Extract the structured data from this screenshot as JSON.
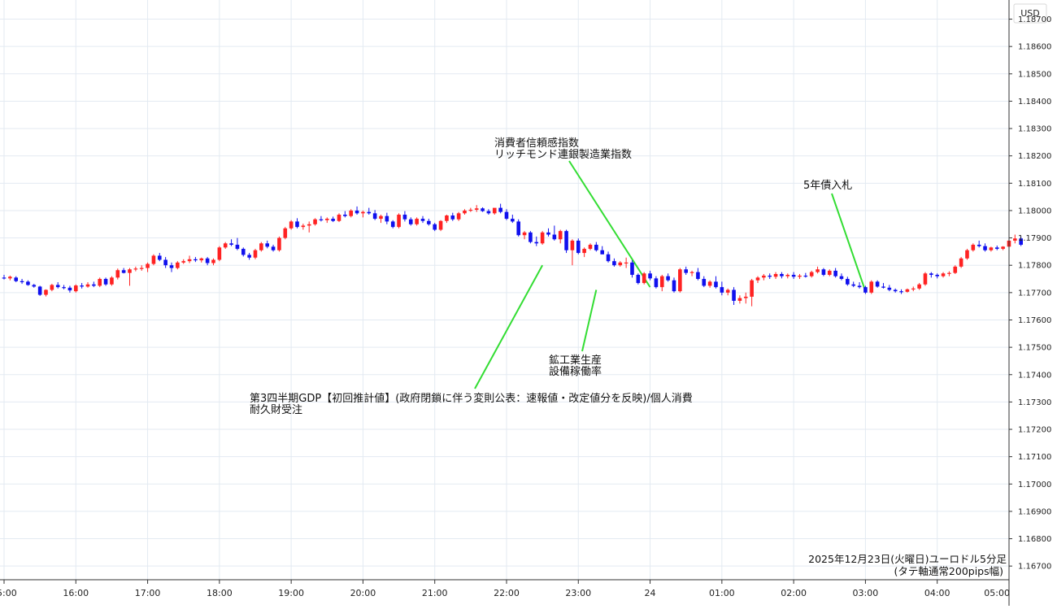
{
  "chart_data": {
    "type": "candlestick",
    "currency_label": "USD",
    "caption_lines": [
      "2025年12月23日(火曜日)ユーロドル5分足",
      "(タテ軸通常200pips幅)"
    ],
    "y_ticks": [
      "1.18700",
      "1.18600",
      "1.18500",
      "1.18400",
      "1.18300",
      "1.18200",
      "1.18100",
      "1.18000",
      "1.17900",
      "1.17800",
      "1.17700",
      "1.17600",
      "1.17500",
      "1.17400",
      "1.17300",
      "1.17200",
      "1.17100",
      "1.17000",
      "1.16900",
      "1.16800",
      "1.16700"
    ],
    "ylim": [
      1.1665,
      1.1877
    ],
    "x_ticks": [
      {
        "label": "5:00",
        "bar": 0
      },
      {
        "label": "16:00",
        "bar": 12
      },
      {
        "label": "17:00",
        "bar": 24
      },
      {
        "label": "18:00",
        "bar": 36
      },
      {
        "label": "19:00",
        "bar": 48
      },
      {
        "label": "20:00",
        "bar": 60
      },
      {
        "label": "21:00",
        "bar": 72
      },
      {
        "label": "22:00",
        "bar": 84
      },
      {
        "label": "23:00",
        "bar": 96
      },
      {
        "label": "24",
        "bar": 108
      },
      {
        "label": "01:00",
        "bar": 120
      },
      {
        "label": "02:00",
        "bar": 132
      },
      {
        "label": "03:00",
        "bar": 144
      },
      {
        "label": "04:00",
        "bar": 156
      },
      {
        "label": "05:00",
        "bar": 168
      }
    ],
    "colors": {
      "up": "#ff2222",
      "down": "#1010ee",
      "annotation_line": "#33dd33",
      "grid": "#e3eaf2",
      "axis": "#333333"
    },
    "ohlc": [
      [
        1.17755,
        1.17765,
        1.17748,
        1.17752
      ],
      [
        1.17752,
        1.17762,
        1.17745,
        1.17758
      ],
      [
        1.17755,
        1.1776,
        1.17738,
        1.17742
      ],
      [
        1.17742,
        1.1775,
        1.17732,
        1.17738
      ],
      [
        1.1774,
        1.17745,
        1.17725,
        1.17728
      ],
      [
        1.17728,
        1.17732,
        1.17718,
        1.17722
      ],
      [
        1.17722,
        1.17725,
        1.17688,
        1.17692
      ],
      [
        1.17692,
        1.17712,
        1.17686,
        1.1771
      ],
      [
        1.1771,
        1.17732,
        1.17705,
        1.17728
      ],
      [
        1.17728,
        1.17738,
        1.17715,
        1.1772
      ],
      [
        1.1772,
        1.17728,
        1.17712,
        1.17718
      ],
      [
        1.17718,
        1.17725,
        1.177,
        1.17708
      ],
      [
        1.17705,
        1.1773,
        1.177,
        1.17726
      ],
      [
        1.17726,
        1.17735,
        1.17715,
        1.17722
      ],
      [
        1.17722,
        1.17738,
        1.17718,
        1.1773
      ],
      [
        1.1773,
        1.1774,
        1.1772,
        1.17725
      ],
      [
        1.17725,
        1.17755,
        1.1772,
        1.1775
      ],
      [
        1.1775,
        1.17755,
        1.17725,
        1.1773
      ],
      [
        1.1773,
        1.1776,
        1.17725,
        1.17755
      ],
      [
        1.17755,
        1.17788,
        1.17748,
        1.17782
      ],
      [
        1.17782,
        1.1779,
        1.1777,
        1.17772
      ],
      [
        1.17772,
        1.1779,
        1.17725,
        1.17785
      ],
      [
        1.17785,
        1.17795,
        1.17778,
        1.17788
      ],
      [
        1.17788,
        1.178,
        1.1778,
        1.1779
      ],
      [
        1.1779,
        1.1781,
        1.17775,
        1.17805
      ],
      [
        1.17805,
        1.1784,
        1.178,
        1.17835
      ],
      [
        1.17835,
        1.17845,
        1.17815,
        1.1782
      ],
      [
        1.1782,
        1.1783,
        1.1779,
        1.178
      ],
      [
        1.178,
        1.1781,
        1.17775,
        1.1779
      ],
      [
        1.1779,
        1.17815,
        1.17785,
        1.1781
      ],
      [
        1.1781,
        1.17822,
        1.17805,
        1.17815
      ],
      [
        1.17815,
        1.17835,
        1.17808,
        1.17822
      ],
      [
        1.17822,
        1.1783,
        1.17812,
        1.17818
      ],
      [
        1.17818,
        1.17828,
        1.1781,
        1.17825
      ],
      [
        1.17825,
        1.1783,
        1.178,
        1.17808
      ],
      [
        1.17808,
        1.17825,
        1.178,
        1.1782
      ],
      [
        1.1782,
        1.1787,
        1.17815,
        1.17865
      ],
      [
        1.17865,
        1.17885,
        1.1786,
        1.1788
      ],
      [
        1.1788,
        1.17895,
        1.1787,
        1.17875
      ],
      [
        1.17875,
        1.179,
        1.17855,
        1.1786
      ],
      [
        1.1786,
        1.17865,
        1.17832,
        1.17838
      ],
      [
        1.17838,
        1.17845,
        1.1782,
        1.17828
      ],
      [
        1.17828,
        1.1786,
        1.17822,
        1.17855
      ],
      [
        1.17855,
        1.17885,
        1.1785,
        1.1788
      ],
      [
        1.1788,
        1.1789,
        1.17862,
        1.17868
      ],
      [
        1.17868,
        1.17875,
        1.1785,
        1.17855
      ],
      [
        1.17855,
        1.17905,
        1.1785,
        1.179
      ],
      [
        1.179,
        1.1794,
        1.17895,
        1.17935
      ],
      [
        1.17935,
        1.17965,
        1.1793,
        1.1796
      ],
      [
        1.1796,
        1.17972,
        1.17935,
        1.1794
      ],
      [
        1.1794,
        1.17952,
        1.1793,
        1.17945
      ],
      [
        1.17945,
        1.1796,
        1.1792,
        1.1795
      ],
      [
        1.1795,
        1.17972,
        1.17945,
        1.17968
      ],
      [
        1.17968,
        1.1798,
        1.1796,
        1.17965
      ],
      [
        1.17965,
        1.17975,
        1.17955,
        1.1797
      ],
      [
        1.1797,
        1.17978,
        1.17958,
        1.17962
      ],
      [
        1.17962,
        1.1799,
        1.17958,
        1.17985
      ],
      [
        1.17985,
        1.17998,
        1.17975,
        1.1798
      ],
      [
        1.1798,
        1.18005,
        1.17975,
        1.18
      ],
      [
        1.18,
        1.18015,
        1.17985,
        1.1799
      ],
      [
        1.1799,
        1.18,
        1.17975,
        1.17995
      ],
      [
        1.17995,
        1.1801,
        1.17985,
        1.1799
      ],
      [
        1.1799,
        1.18002,
        1.17965,
        1.1797
      ],
      [
        1.1797,
        1.17985,
        1.17955,
        1.1798
      ],
      [
        1.1798,
        1.17992,
        1.1795,
        1.1796
      ],
      [
        1.1796,
        1.17965,
        1.17935,
        1.1794
      ],
      [
        1.1794,
        1.1799,
        1.17935,
        1.17985
      ],
      [
        1.17985,
        1.17998,
        1.1796,
        1.17968
      ],
      [
        1.17968,
        1.17975,
        1.17945,
        1.1795
      ],
      [
        1.1795,
        1.17975,
        1.17945,
        1.1797
      ],
      [
        1.1797,
        1.1798,
        1.17955,
        1.17962
      ],
      [
        1.17962,
        1.1797,
        1.17945,
        1.1795
      ],
      [
        1.1795,
        1.17955,
        1.17925,
        1.1793
      ],
      [
        1.1793,
        1.17965,
        1.17925,
        1.17962
      ],
      [
        1.17962,
        1.17985,
        1.17955,
        1.17982
      ],
      [
        1.17982,
        1.17992,
        1.17962,
        1.17968
      ],
      [
        1.17968,
        1.17995,
        1.17962,
        1.1799
      ],
      [
        1.1799,
        1.18005,
        1.17985,
        1.18
      ],
      [
        1.18,
        1.1801,
        1.17995,
        1.18003
      ],
      [
        1.18003,
        1.1802,
        1.17995,
        1.18008
      ],
      [
        1.18008,
        1.18012,
        1.17995,
        1.17998
      ],
      [
        1.17998,
        1.18005,
        1.17985,
        1.1799
      ],
      [
        1.1799,
        1.18,
        1.17985,
        1.1801
      ],
      [
        1.1801,
        1.18025,
        1.1799,
        1.17995
      ],
      [
        1.17995,
        1.18005,
        1.17965,
        1.1797
      ],
      [
        1.1797,
        1.17985,
        1.17955,
        1.1796
      ],
      [
        1.1796,
        1.17968,
        1.17905,
        1.1791
      ],
      [
        1.1791,
        1.17925,
        1.17895,
        1.1792
      ],
      [
        1.1792,
        1.17925,
        1.1788,
        1.17885
      ],
      [
        1.17885,
        1.17905,
        1.1787,
        1.1788
      ],
      [
        1.1788,
        1.17925,
        1.17875,
        1.1792
      ],
      [
        1.1792,
        1.17935,
        1.17905,
        1.17912
      ],
      [
        1.17912,
        1.17945,
        1.1789,
        1.17895
      ],
      [
        1.17895,
        1.1793,
        1.1788,
        1.17925
      ],
      [
        1.17925,
        1.1793,
        1.17845,
        1.17855
      ],
      [
        1.17855,
        1.17895,
        1.178,
        1.1789
      ],
      [
        1.1789,
        1.17898,
        1.1784,
        1.17845
      ],
      [
        1.17845,
        1.17865,
        1.1783,
        1.1786
      ],
      [
        1.1786,
        1.1788,
        1.17855,
        1.17875
      ],
      [
        1.17875,
        1.17885,
        1.1785,
        1.17855
      ],
      [
        1.17855,
        1.1787,
        1.1784,
        1.1784
      ],
      [
        1.1784,
        1.1785,
        1.1781,
        1.17815
      ],
      [
        1.17815,
        1.17825,
        1.17795,
        1.178
      ],
      [
        1.178,
        1.17815,
        1.17795,
        1.1781
      ],
      [
        1.1781,
        1.17828,
        1.1779,
        1.1781
      ],
      [
        1.1781,
        1.17818,
        1.17755,
        1.17765
      ],
      [
        1.17765,
        1.1777,
        1.1773,
        1.17735
      ],
      [
        1.17735,
        1.17775,
        1.1773,
        1.1777
      ],
      [
        1.1777,
        1.1778,
        1.17745,
        1.17752
      ],
      [
        1.17752,
        1.1776,
        1.17715,
        1.1772
      ],
      [
        1.1772,
        1.17765,
        1.17705,
        1.1776
      ],
      [
        1.1776,
        1.1777,
        1.1774,
        1.17745
      ],
      [
        1.17745,
        1.17755,
        1.177,
        1.17705
      ],
      [
        1.17705,
        1.1779,
        1.177,
        1.17785
      ],
      [
        1.17785,
        1.17795,
        1.17765,
        1.17772
      ],
      [
        1.17772,
        1.1778,
        1.1776,
        1.17775
      ],
      [
        1.17775,
        1.1779,
        1.17745,
        1.1775
      ],
      [
        1.1775,
        1.1776,
        1.1772,
        1.17725
      ],
      [
        1.17725,
        1.17745,
        1.17718,
        1.1774
      ],
      [
        1.1774,
        1.1776,
        1.17715,
        1.1772
      ],
      [
        1.1772,
        1.1774,
        1.1769,
        1.177
      ],
      [
        1.177,
        1.17715,
        1.1769,
        1.1771
      ],
      [
        1.1771,
        1.1772,
        1.17655,
        1.1767
      ],
      [
        1.1767,
        1.1769,
        1.1766,
        1.1768
      ],
      [
        1.1768,
        1.177,
        1.1766,
        1.17685
      ],
      [
        1.17685,
        1.1775,
        1.1765,
        1.17745
      ],
      [
        1.17745,
        1.1776,
        1.17735,
        1.17755
      ],
      [
        1.17755,
        1.17768,
        1.17745,
        1.17762
      ],
      [
        1.17762,
        1.1777,
        1.1775,
        1.17758
      ],
      [
        1.17758,
        1.17775,
        1.1775,
        1.17768
      ],
      [
        1.17768,
        1.17775,
        1.17752,
        1.1776
      ],
      [
        1.1776,
        1.1777,
        1.17752,
        1.17765
      ],
      [
        1.17765,
        1.17775,
        1.1775,
        1.17758
      ],
      [
        1.17758,
        1.17768,
        1.1775,
        1.17762
      ],
      [
        1.17762,
        1.17772,
        1.17755,
        1.1776
      ],
      [
        1.1776,
        1.1778,
        1.17755,
        1.17775
      ],
      [
        1.17775,
        1.17795,
        1.1777,
        1.17785
      ],
      [
        1.17785,
        1.1779,
        1.1776,
        1.17765
      ],
      [
        1.17765,
        1.17785,
        1.1776,
        1.1778
      ],
      [
        1.1778,
        1.1779,
        1.17755,
        1.1776
      ],
      [
        1.1776,
        1.1777,
        1.17745,
        1.1775
      ],
      [
        1.1775,
        1.17758,
        1.17725,
        1.1773
      ],
      [
        1.1773,
        1.1774,
        1.1772,
        1.17725
      ],
      [
        1.17725,
        1.17738,
        1.17715,
        1.1772
      ],
      [
        1.1772,
        1.17725,
        1.17695,
        1.177
      ],
      [
        1.177,
        1.17745,
        1.17695,
        1.1774
      ],
      [
        1.1774,
        1.17745,
        1.17718,
        1.17722
      ],
      [
        1.17722,
        1.17735,
        1.17715,
        1.17718
      ],
      [
        1.17718,
        1.17728,
        1.17705,
        1.1771
      ],
      [
        1.1771,
        1.17715,
        1.177,
        1.17705
      ],
      [
        1.17705,
        1.17712,
        1.17695,
        1.17703
      ],
      [
        1.17703,
        1.17715,
        1.177,
        1.17712
      ],
      [
        1.17712,
        1.17722,
        1.17705,
        1.17715
      ],
      [
        1.17715,
        1.17735,
        1.1771,
        1.1773
      ],
      [
        1.1773,
        1.17775,
        1.17725,
        1.1777
      ],
      [
        1.1777,
        1.17775,
        1.17755,
        1.17765
      ],
      [
        1.17765,
        1.1777,
        1.17752,
        1.1776
      ],
      [
        1.1776,
        1.17775,
        1.17755,
        1.1777
      ],
      [
        1.1777,
        1.17778,
        1.1776,
        1.17772
      ],
      [
        1.17772,
        1.178,
        1.17768,
        1.17795
      ],
      [
        1.17795,
        1.1783,
        1.1779,
        1.17825
      ],
      [
        1.17825,
        1.1786,
        1.1782,
        1.17855
      ],
      [
        1.17855,
        1.1788,
        1.1785,
        1.17875
      ],
      [
        1.17875,
        1.1789,
        1.17865,
        1.1787
      ],
      [
        1.1787,
        1.1788,
        1.1785,
        1.17855
      ],
      [
        1.17855,
        1.17868,
        1.1785,
        1.17865
      ],
      [
        1.17865,
        1.17872,
        1.17855,
        1.1786
      ],
      [
        1.1786,
        1.1787,
        1.17855,
        1.17868
      ],
      [
        1.17868,
        1.17895,
        1.17862,
        1.1789
      ],
      [
        1.1789,
        1.17912,
        1.1788,
        1.17898
      ],
      [
        1.17898,
        1.17905,
        1.1787,
        1.17875
      ]
    ],
    "annotations": [
      {
        "lines": [
          "消費者信頼感指数",
          "リッチモンド連銀製造業指数"
        ],
        "bar": 108,
        "price": 1.1772
      },
      {
        "lines": [
          "5年債入札"
        ],
        "bar": 144,
        "price": 1.17705
      },
      {
        "lines": [
          "鉱工業生産",
          "設備稼働率"
        ],
        "bar": 99,
        "price": 1.1771
      },
      {
        "lines": [
          "第3四半期GDP【初回推計値】(政府閉鎖に伴う変則公表：速報値・改定値分を反映)/個人消費",
          "耐久財受注"
        ],
        "bar": 90,
        "price": 1.178
      }
    ]
  }
}
